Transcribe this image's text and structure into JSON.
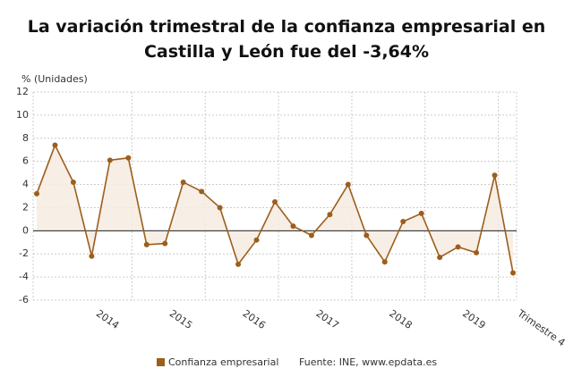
{
  "chart_data": {
    "type": "line",
    "title": "La variación trimestral de la confianza empresarial en Castilla y León fue del -3,64%",
    "y_label": "% (Unidades)",
    "categories": [
      null,
      null,
      null,
      "2014",
      null,
      null,
      null,
      "2015",
      null,
      null,
      null,
      "2016",
      null,
      null,
      null,
      "2017",
      null,
      null,
      null,
      "2018",
      null,
      null,
      null,
      "2019",
      null,
      null,
      "Trimestre 4"
    ],
    "series": [
      {
        "name": "Confianza empresarial",
        "color": "#9c5e1c",
        "values": [
          3.2,
          7.4,
          4.2,
          -2.2,
          6.1,
          6.3,
          -1.2,
          -1.1,
          4.2,
          3.4,
          2.0,
          -2.9,
          -0.8,
          2.5,
          0.4,
          -0.4,
          1.4,
          4.0,
          -0.4,
          -2.7,
          0.8,
          1.5,
          -2.3,
          -1.4,
          -1.9,
          4.8,
          -3.64
        ]
      }
    ],
    "ylim": [
      -6,
      12
    ],
    "yticks": [
      -6,
      -4,
      -2,
      0,
      2,
      4,
      6,
      8,
      10,
      12
    ],
    "grid": true,
    "source": "Fuente: INE, www.epdata.es"
  }
}
